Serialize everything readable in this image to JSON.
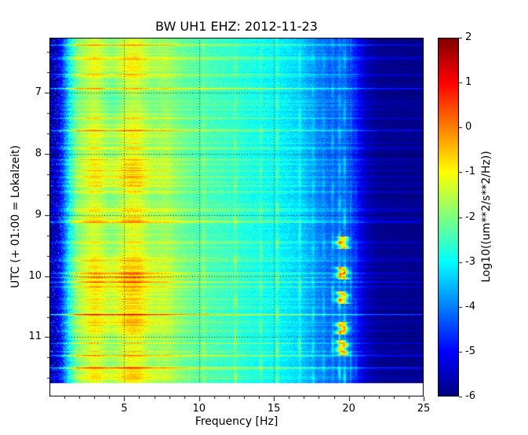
{
  "figure": {
    "title": "BW UH1 EHZ: 2012-11-23",
    "xlabel": "Frequency [Hz]",
    "ylabel": "UTC (+ 01:00 = Lokalzeit)",
    "colorbar_label": "Log10((um**2/s**2/Hz))"
  },
  "axes": {
    "x_tick_labels": [
      "5",
      "10",
      "15",
      "20",
      "25"
    ],
    "y_tick_labels": [
      "7",
      "8",
      "9",
      "10",
      "11"
    ],
    "colorbar_tick_labels": [
      "2",
      "1",
      "0",
      "-1",
      "-2",
      "-3",
      "-4",
      "-5",
      "-6"
    ]
  },
  "chart_data": {
    "type": "heatmap",
    "title": "BW UH1 EHZ: 2012-11-23",
    "station": "BW UH1 EHZ",
    "date": "2012-11-23",
    "xlabel": "Frequency [Hz]",
    "ylabel": "UTC (+ 01:00 = Lokalzeit)",
    "colorbar_label": "Log10((um**2/s**2/Hz))",
    "colormap": "jet",
    "value_range": [
      -6,
      2
    ],
    "freq_range_hz": [
      0,
      25
    ],
    "time_range_utc_hours": [
      6.1,
      11.97
    ],
    "data_end_utc_hours": 11.75,
    "x_ticks": [
      5,
      10,
      15,
      20,
      25
    ],
    "y_ticks": [
      7,
      8,
      9,
      10,
      11
    ],
    "colorbar_ticks": [
      2,
      1,
      0,
      -1,
      -2,
      -3,
      -4,
      -5,
      -6
    ],
    "grid": true,
    "spectral_profile_db": [
      [
        0,
        -5.8
      ],
      [
        0.5,
        -5.6
      ],
      [
        0.9,
        -4.6
      ],
      [
        1.3,
        -3.2
      ],
      [
        1.8,
        -2.1
      ],
      [
        2.3,
        -1.7
      ],
      [
        3,
        -1.5
      ],
      [
        4,
        -1.7
      ],
      [
        5,
        -1.45
      ],
      [
        6,
        -1.35
      ],
      [
        7,
        -1.6
      ],
      [
        8,
        -1.9
      ],
      [
        9,
        -2.2
      ],
      [
        10,
        -2.4
      ],
      [
        11,
        -2.5
      ],
      [
        12,
        -2.6
      ],
      [
        13,
        -2.75
      ],
      [
        14,
        -2.9
      ],
      [
        15,
        -3.0
      ],
      [
        16,
        -3.2
      ],
      [
        17,
        -3.5
      ],
      [
        18,
        -4.0
      ],
      [
        19,
        -4.3
      ],
      [
        19.6,
        -4.2
      ],
      [
        20,
        -4.4
      ],
      [
        20.6,
        -5.0
      ],
      [
        21.2,
        -5.6
      ],
      [
        22,
        -5.9
      ],
      [
        25,
        -6.0
      ]
    ],
    "tonal_lines_hz": [
      10.3,
      12.4,
      14.1,
      15.2,
      16.7,
      17.6,
      18.3,
      18.9,
      19.35,
      19.7,
      20.1,
      20.45
    ],
    "burst_band_hz": [
      19.2,
      19.9
    ],
    "burst_times_utc_hours": [
      [
        9.35,
        9.55
      ],
      [
        9.85,
        10.05
      ],
      [
        10.25,
        10.45
      ],
      [
        10.75,
        10.95
      ],
      [
        11.05,
        11.3
      ]
    ],
    "broadband_events_utc_hours": [
      [
        6.22,
        1.3
      ],
      [
        6.45,
        0.9
      ],
      [
        6.7,
        1.1
      ],
      [
        6.93,
        1.5
      ],
      [
        7.2,
        0.8
      ],
      [
        7.42,
        1.2
      ],
      [
        7.62,
        1.7
      ],
      [
        7.9,
        0.9
      ],
      [
        8.1,
        1.2
      ],
      [
        8.38,
        0.8
      ],
      [
        8.62,
        1.0
      ],
      [
        8.9,
        0.9
      ],
      [
        9.12,
        1.4
      ],
      [
        9.45,
        0.9
      ],
      [
        9.75,
        1.2
      ],
      [
        10.02,
        1.0
      ],
      [
        10.18,
        1.5
      ],
      [
        10.63,
        3.0
      ],
      [
        10.9,
        1.0
      ],
      [
        11.1,
        1.4
      ],
      [
        11.3,
        1.1
      ],
      [
        11.5,
        1.9
      ]
    ]
  }
}
